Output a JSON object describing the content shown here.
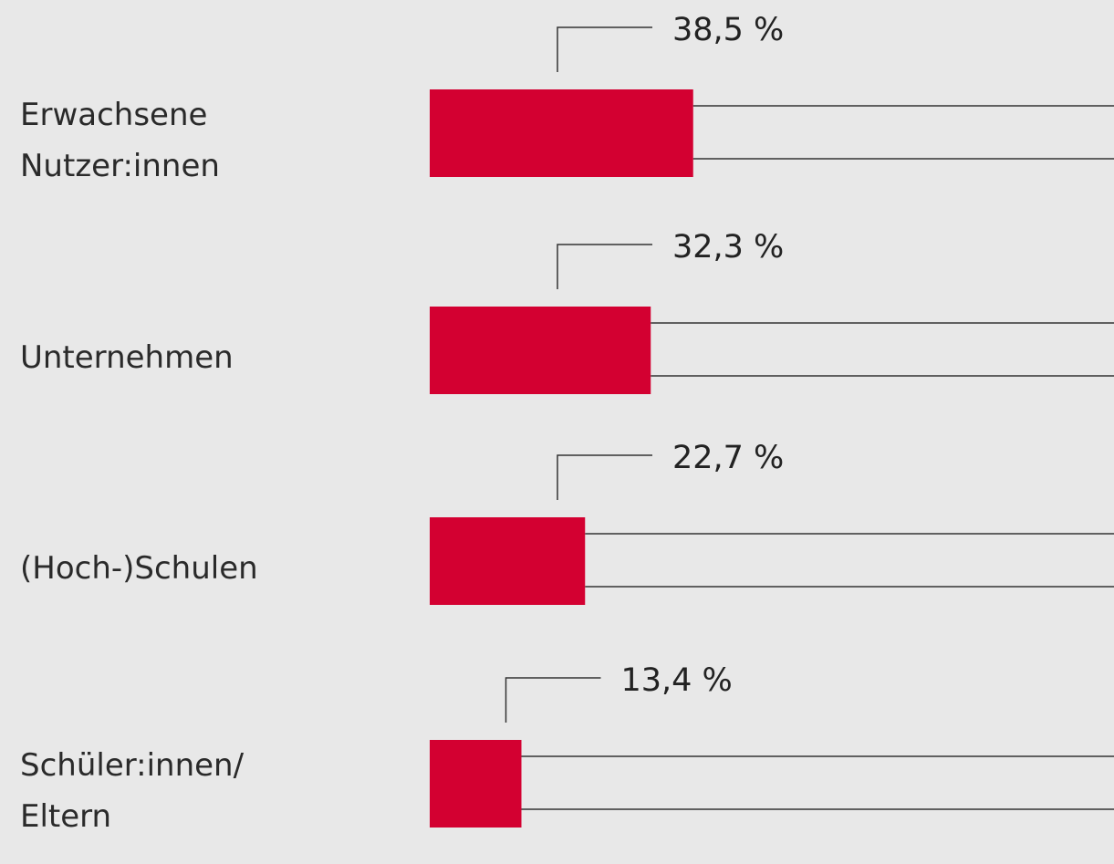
{
  "chart_data": {
    "type": "bar",
    "orientation": "horizontal",
    "categories": [
      "Erwachsene\nNutzer:innen",
      "Unternehmen",
      "(Hoch-)Schulen",
      "Schüler:innen/\nEltern"
    ],
    "values": [
      38.5,
      32.3,
      22.7,
      13.4
    ],
    "value_labels": [
      "38,5 %",
      "32,3 %",
      "22,7 %",
      "13,4 %"
    ],
    "color": "#d30031",
    "xlim": [
      0,
      100
    ]
  }
}
